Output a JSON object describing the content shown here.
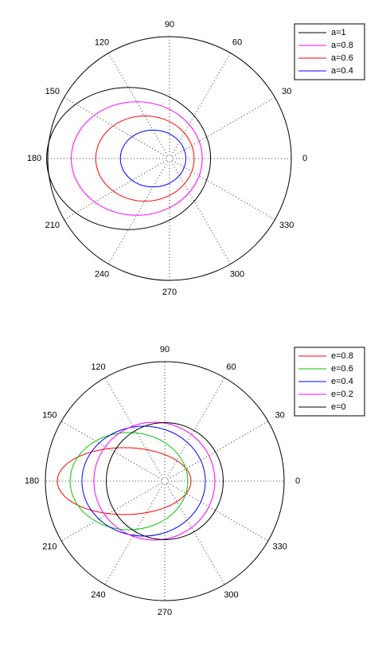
{
  "chart_data": [
    {
      "type": "polar",
      "rlim": [
        0,
        1
      ],
      "thetaticks": [
        0,
        30,
        60,
        90,
        120,
        150,
        180,
        210,
        240,
        270,
        300,
        330
      ],
      "legend": "upper right",
      "series": [
        {
          "name": "a=1",
          "color": "#000000",
          "center": [
            -0.336,
            0
          ],
          "rx": 0.673,
          "ry": 0.583
        },
        {
          "name": "a=0.8",
          "color": "#ff00ff",
          "center": [
            -0.269,
            0
          ],
          "rx": 0.538,
          "ry": 0.466
        },
        {
          "name": "a=0.6",
          "color": "#ff0000",
          "center": [
            -0.202,
            0
          ],
          "rx": 0.404,
          "ry": 0.35
        },
        {
          "name": "a=0.4",
          "color": "#0000ff",
          "center": [
            -0.135,
            0
          ],
          "rx": 0.269,
          "ry": 0.233
        }
      ]
    },
    {
      "type": "polar",
      "rlim": [
        0,
        1
      ],
      "thetaticks": [
        0,
        30,
        60,
        90,
        120,
        150,
        180,
        210,
        240,
        270,
        300,
        330
      ],
      "legend": "upper right",
      "series": [
        {
          "name": "e=0.8",
          "color": "#ff0000",
          "center": [
            -0.34,
            0
          ],
          "rx": 0.56,
          "ry": 0.28
        },
        {
          "name": "e=0.6",
          "color": "#00cc00",
          "center": [
            -0.3,
            0
          ],
          "rx": 0.493,
          "ry": 0.407
        },
        {
          "name": "e=0.4",
          "color": "#0000ff",
          "center": [
            -0.177,
            0
          ],
          "rx": 0.517,
          "ry": 0.46
        },
        {
          "name": "e=0.2",
          "color": "#ff00ff",
          "center": [
            -0.087,
            0
          ],
          "rx": 0.507,
          "ry": 0.493
        },
        {
          "name": "e=0",
          "color": "#000000",
          "center": [
            0,
            0
          ],
          "rx": 0.49,
          "ry": 0.49
        }
      ]
    }
  ]
}
